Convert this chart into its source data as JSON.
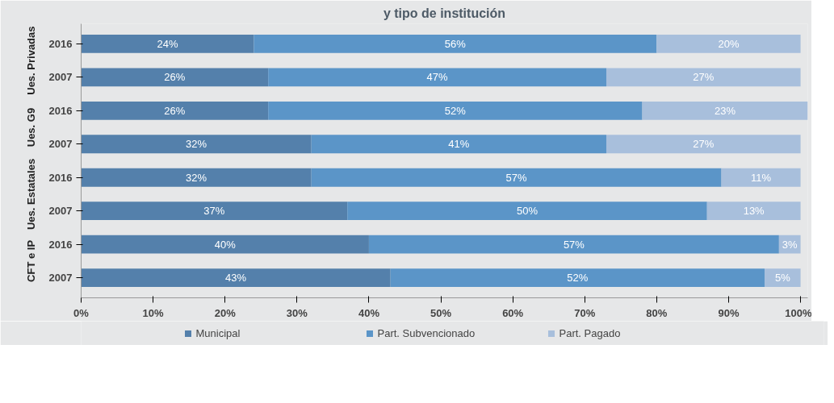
{
  "chart_data": {
    "type": "bar",
    "orientation": "horizontal",
    "stacked": true,
    "title": "y tipo de institución",
    "categories": [
      "2016",
      "2007",
      "2016",
      "2007",
      "2016",
      "2007",
      "2016",
      "2007"
    ],
    "annotations": [
      "Ues. Privadas",
      "Ues. G9",
      "Ues. Estatales",
      "CFT e IP"
    ],
    "series": [
      {
        "name": "Municipal",
        "color": "#5480ab",
        "values": [
          24,
          26,
          26,
          32,
          32,
          37,
          40,
          43
        ],
        "value_labels": [
          "24%",
          "26%",
          "26%",
          "32%",
          "32%",
          "37%",
          "40%",
          "43%"
        ]
      },
      {
        "name": "Part. Subvencionado",
        "color": "#5b95c8",
        "values": [
          56,
          47,
          52,
          41,
          57,
          50,
          57,
          52
        ],
        "value_labels": [
          "56%",
          "47%",
          "52%",
          "41%",
          "57%",
          "50%",
          "57%",
          "52%"
        ]
      },
      {
        "name": "Part. Pagado",
        "color": "#a8bfdc",
        "values": [
          20,
          27,
          23,
          27,
          11,
          13,
          3,
          5
        ],
        "value_labels": [
          "20%",
          "27%",
          "23%",
          "27%",
          "11%",
          "13%",
          "3%",
          "5%"
        ]
      }
    ],
    "xlim": [
      0,
      101
    ],
    "xticks": [
      {
        "value": 0,
        "label": "0%"
      },
      {
        "value": 10,
        "label": "10%"
      },
      {
        "value": 20,
        "label": "20%"
      },
      {
        "value": 30,
        "label": "30%"
      },
      {
        "value": 40,
        "label": "40%"
      },
      {
        "value": 50,
        "label": "50%"
      },
      {
        "value": 60,
        "label": "60%"
      },
      {
        "value": 70,
        "label": "70%"
      },
      {
        "value": 80,
        "label": "80%"
      },
      {
        "value": 90,
        "label": "90%"
      },
      {
        "value": 100,
        "label": "100%"
      }
    ],
    "grid": false,
    "legend": "bottom"
  }
}
